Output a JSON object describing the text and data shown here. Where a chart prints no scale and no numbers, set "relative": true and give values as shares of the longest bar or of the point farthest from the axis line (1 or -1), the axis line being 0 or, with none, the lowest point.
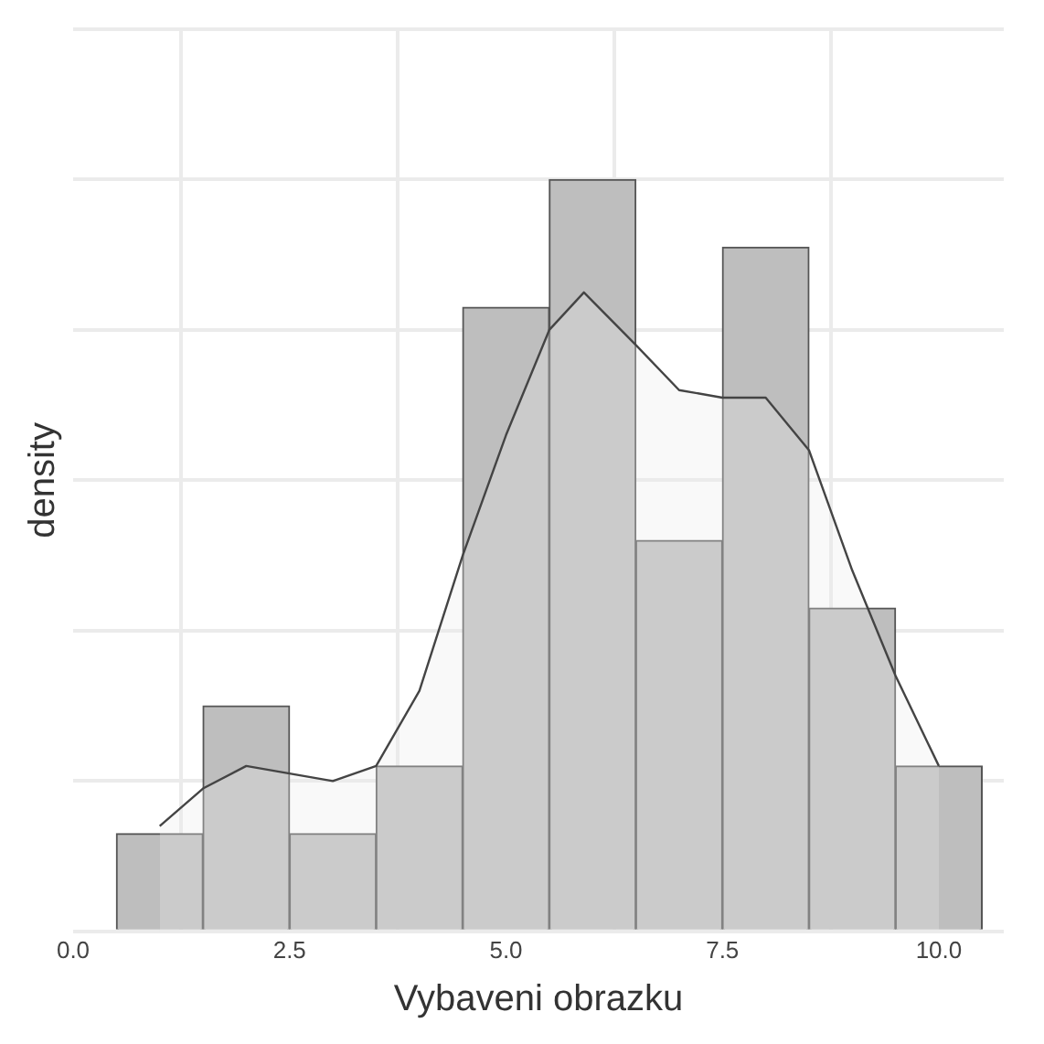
{
  "chart_data": {
    "type": "histogram",
    "relative": true,
    "xlabel": "Vybaveni obrazku",
    "ylabel": "density",
    "bins": [
      0.5,
      1.5,
      2.5,
      3.5,
      4.5,
      5.5,
      6.5,
      7.5,
      8.5,
      9.5,
      10.5
    ],
    "values": [
      0.13,
      0.3,
      0.13,
      0.22,
      0.83,
      1,
      0.52,
      0.91,
      0.43,
      0.22
    ],
    "color": "#bebebe",
    "series": [
      {
        "type": "area",
        "color": "#444444",
        "x": [
          1,
          1.5,
          2,
          2.5,
          3,
          3.5,
          4,
          4.5,
          5,
          5.5,
          5.9,
          6.5,
          7,
          7.5,
          8,
          8.5,
          9,
          9.5,
          10
        ],
        "values": [
          0.14,
          0.19,
          0.22,
          0.21,
          0.2,
          0.22,
          0.32,
          0.5,
          0.66,
          0.8,
          0.85,
          0.78,
          0.72,
          0.71,
          0.71,
          0.64,
          0.48,
          0.34,
          0.22
        ]
      }
    ],
    "xlim": [
      0,
      10.75
    ],
    "xticks": [
      {
        "value": 0,
        "label": "0.0"
      },
      {
        "value": 2.5,
        "label": "2.5"
      },
      {
        "value": 5,
        "label": "5.0"
      },
      {
        "value": 7.5,
        "label": "7.5"
      },
      {
        "value": 10,
        "label": "10.0"
      }
    ],
    "grid": true,
    "legend": false
  }
}
